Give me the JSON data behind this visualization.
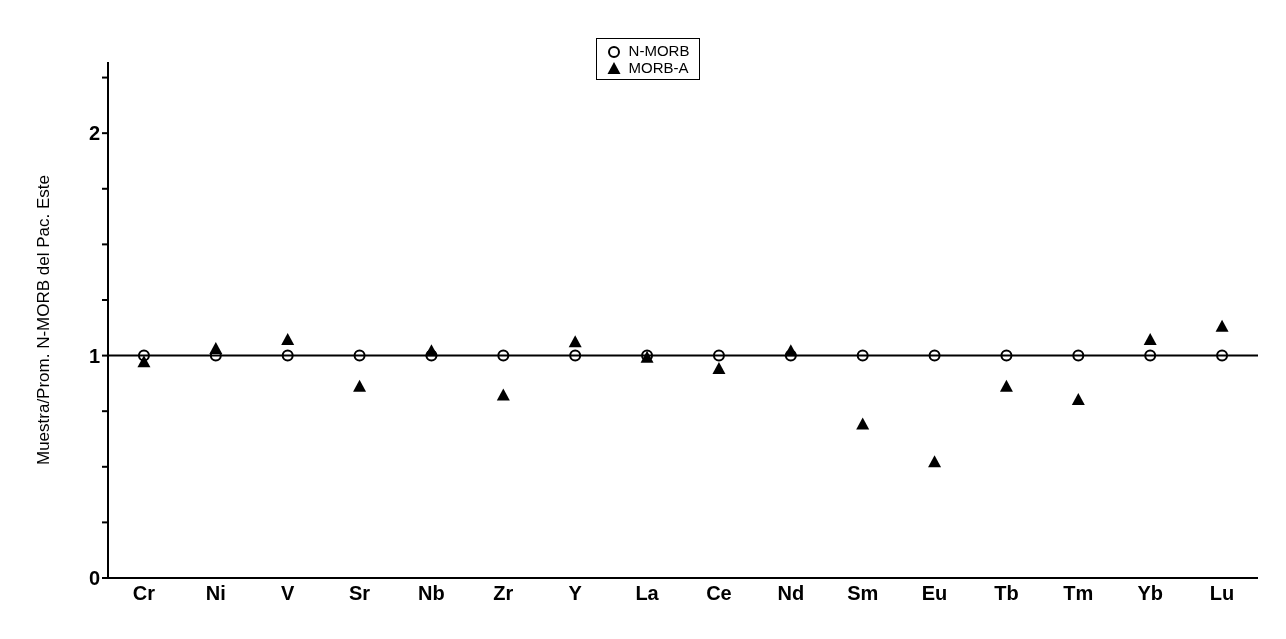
{
  "chart_data": {
    "type": "scatter",
    "ylabel": "Muestra/Prom. N-MORB del Pac. Este",
    "categories": [
      "Cr",
      "Ni",
      "V",
      "Sr",
      "Nb",
      "Zr",
      "Y",
      "La",
      "Ce",
      "Nd",
      "Sm",
      "Eu",
      "Tb",
      "Tm",
      "Yb",
      "Lu"
    ],
    "series": [
      {
        "name": "N-MORB",
        "color": "#000000",
        "marker": "circle",
        "values": [
          1,
          1,
          1,
          1,
          1,
          1,
          1,
          1,
          1,
          1,
          1,
          1,
          1,
          1,
          1,
          1
        ]
      },
      {
        "name": "MORB-A",
        "color": "#000000",
        "marker": "triangle",
        "values": [
          0.97,
          1.03,
          1.07,
          0.86,
          1.02,
          0.82,
          1.06,
          0.99,
          0.94,
          1.02,
          0.69,
          0.52,
          0.86,
          0.8,
          1.07,
          1.13
        ]
      }
    ],
    "ylim": [
      0,
      2.32
    ],
    "yticks": [
      0,
      {
        "value": 0.25,
        "label": null
      },
      {
        "value": 0.5,
        "label": null
      },
      {
        "value": 0.75,
        "label": null
      },
      1,
      {
        "value": 1.25,
        "label": null
      },
      {
        "value": 1.5,
        "label": null
      },
      {
        "value": 1.75,
        "label": null
      },
      2,
      {
        "value": 2.25,
        "label": null
      }
    ],
    "ref_lines": [
      {
        "axis": "y",
        "value": 1,
        "color": "#000000"
      }
    ],
    "grid": false,
    "legend": "top"
  }
}
